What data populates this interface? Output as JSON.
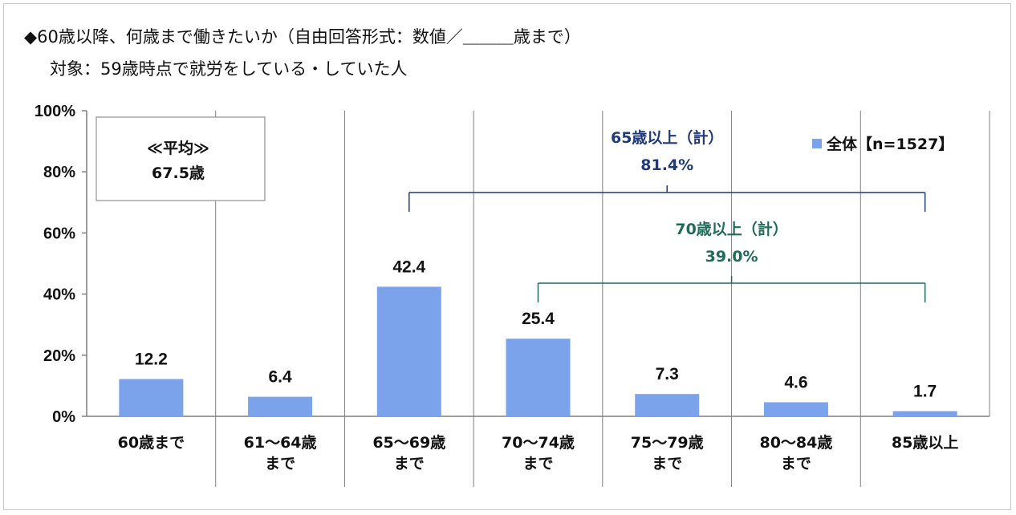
{
  "title": {
    "line1": "◆60歳以降、何歳まで働きたいか（自由回答形式：数値／＿＿＿歳まで）",
    "line2": "対象：59歳時点で就労をしている・していた人"
  },
  "average_box": {
    "heading": "≪平均≫",
    "value": "67.5歳"
  },
  "chart_data": {
    "type": "bar",
    "categories": [
      [
        "60歳まで"
      ],
      [
        "61～64歳",
        "まで"
      ],
      [
        "65～69歳",
        "まで"
      ],
      [
        "70～74歳",
        "まで"
      ],
      [
        "75～79歳",
        "まで"
      ],
      [
        "80～84歳",
        "まで"
      ],
      [
        "85歳以上"
      ]
    ],
    "series": [
      {
        "name": "全体【n=1527】",
        "values": [
          12.2,
          6.4,
          42.4,
          25.4,
          7.3,
          4.6,
          1.7
        ],
        "labels": [
          "12.2",
          "6.4",
          "42.4",
          "25.4",
          "7.3",
          "4.6",
          "1.7"
        ]
      }
    ],
    "ylim": [
      0,
      100
    ],
    "yticks": [
      0,
      20,
      40,
      60,
      80,
      100
    ],
    "ytick_labels": [
      "0%",
      "20%",
      "40%",
      "60%",
      "80%",
      "100%"
    ],
    "grid": "vertical-separators",
    "legend_position": "top-right",
    "annotations": [
      {
        "label": "65歳以上（計）",
        "value": "81.4%",
        "from_category": 2,
        "to_category": 6,
        "color": "#1f3a7a"
      },
      {
        "label": "70歳以上（計）",
        "value": "39.0%",
        "from_category": 3,
        "to_category": 6,
        "color": "#1f6b5a"
      }
    ]
  },
  "colors": {
    "bar": "#7aa3ec",
    "axis": "#7f7f7f"
  }
}
